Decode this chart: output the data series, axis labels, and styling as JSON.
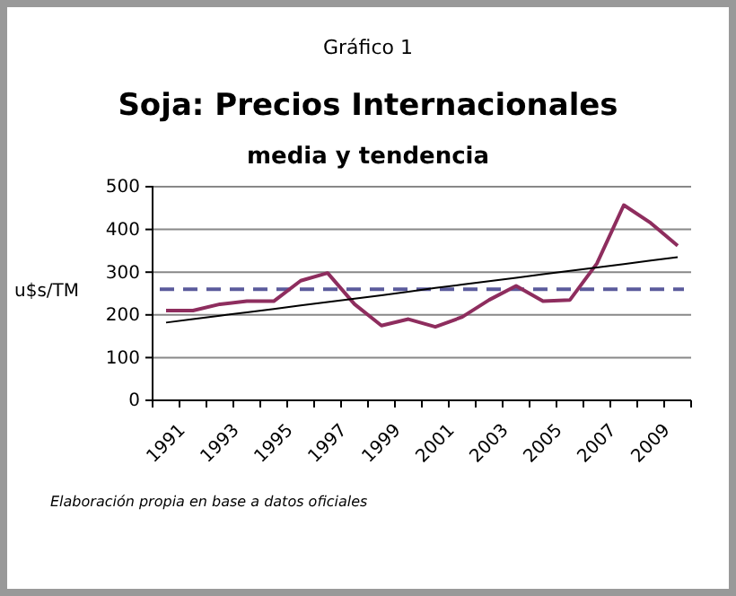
{
  "chart_data": {
    "type": "line",
    "title": "Soja: Precios Internacionales",
    "subtitle": "media y tendencia",
    "ylabel": "u$s/TM",
    "annotations": [
      "Gráfico 1",
      "Elaboración propia en base a datos oficiales"
    ],
    "categories": [
      "1991",
      null,
      "1993",
      null,
      "1995",
      null,
      "1997",
      null,
      "1999",
      null,
      "2001",
      null,
      "2003",
      null,
      "2005",
      null,
      "2007",
      null,
      "2009",
      null
    ],
    "series": [
      {
        "color": "#8e2d5e",
        "values": [
          210,
          210,
          225,
          232,
          232,
          280,
          298,
          225,
          175,
          190,
          172,
          195,
          235,
          268,
          232,
          235,
          320,
          457,
          415,
          362
        ]
      },
      {
        "type": "line",
        "color": "#000000",
        "values": [
          182,
          190,
          198,
          206,
          214,
          222,
          230,
          238,
          246,
          254,
          263,
          271,
          279,
          287,
          295,
          303,
          311,
          319,
          327,
          335
        ]
      }
    ],
    "ref_lines": [
      {
        "axis": "y",
        "value": 260,
        "color": "#5b5b9c",
        "line_style": "dashed"
      }
    ],
    "ylim": [
      0,
      500
    ],
    "yticks": [
      0,
      100,
      200,
      300,
      400,
      500
    ],
    "grid": "y",
    "marker": "none",
    "line_style": "solid"
  }
}
